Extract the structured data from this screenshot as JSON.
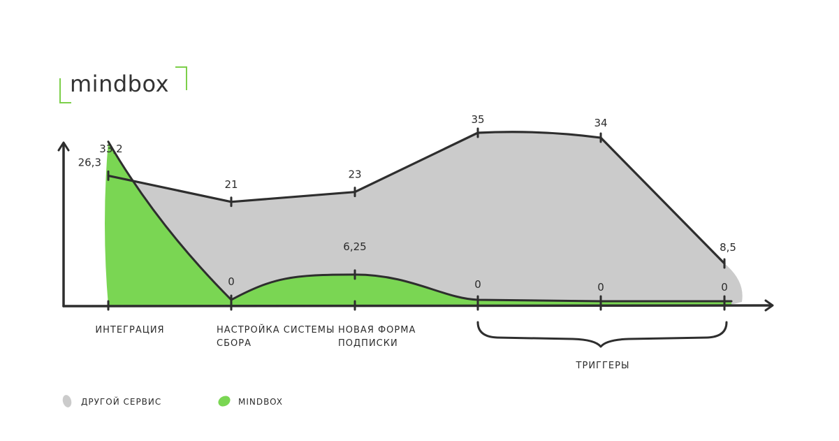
{
  "logo": {
    "text": "mindbox",
    "accent_color": "#7ccf4a"
  },
  "chart_data": {
    "type": "area",
    "categories": [
      "ИНТЕГРАЦИЯ",
      "НАСТРОЙКА СИСТЕМЫ СБОРА",
      "НОВАЯ ФОРМА ПОДПИСКИ",
      "",
      "",
      ""
    ],
    "group_labels": [
      {
        "label": "ТРИГГЕРЫ",
        "from_index": 3,
        "to_index": 5
      }
    ],
    "series": [
      {
        "name": "ДРУГОЙ СЕРВИС",
        "color": "#cbcbcb",
        "values": [
          26.3,
          21,
          23,
          35,
          34,
          8.5
        ],
        "labels": [
          "26,3",
          "21",
          "23",
          "35",
          "34",
          "8,5"
        ]
      },
      {
        "name": "MINDBOX",
        "color": "#7ad653",
        "values": [
          33.2,
          0,
          6.25,
          0,
          0,
          0
        ],
        "labels": [
          "33,2",
          "0",
          "6,25",
          "0",
          "0",
          "0"
        ]
      }
    ],
    "ylim": [
      0,
      40
    ],
    "grid": false,
    "legend_position": "bottom-left"
  }
}
